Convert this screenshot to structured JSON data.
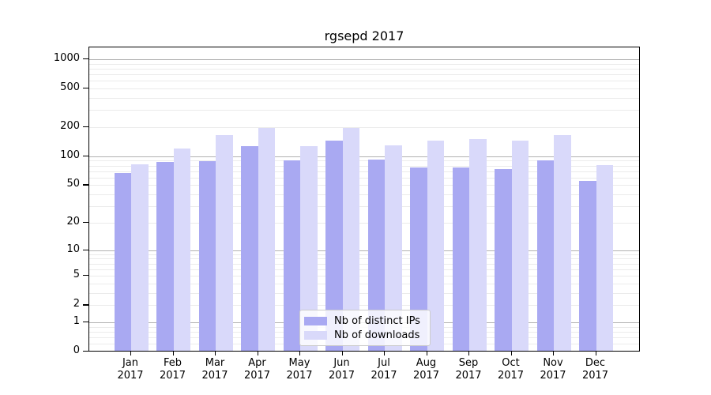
{
  "chart_data": {
    "type": "bar",
    "title": "rgsepd 2017",
    "categories": [
      "Jan",
      "Feb",
      "Mar",
      "Apr",
      "May",
      "Jun",
      "Jul",
      "Aug",
      "Sep",
      "Oct",
      "Nov",
      "Dec"
    ],
    "year_label": "2017",
    "series": [
      {
        "name": "Nb of distinct IPs",
        "color": "#a9a9f2",
        "values": [
          67,
          87,
          89,
          128,
          91,
          144,
          93,
          76,
          77,
          74,
          90,
          55
        ]
      },
      {
        "name": "Nb of downloads",
        "color": "#d9d9fa",
        "values": [
          82,
          120,
          166,
          195,
          127,
          197,
          131,
          146,
          151,
          146,
          166,
          81
        ]
      }
    ],
    "y_ticks": [
      1000,
      500,
      200,
      100,
      50,
      20,
      10,
      5,
      2,
      1,
      0
    ],
    "y_scale": "log(1+y)",
    "ylim": [
      0,
      1300
    ],
    "grid": "both",
    "major_grid_values": [
      1,
      10,
      100,
      1000
    ],
    "major_grid_color": "#b0b0b0",
    "minor_grid_color": "#ebebeb",
    "legend_position": "lower center"
  }
}
